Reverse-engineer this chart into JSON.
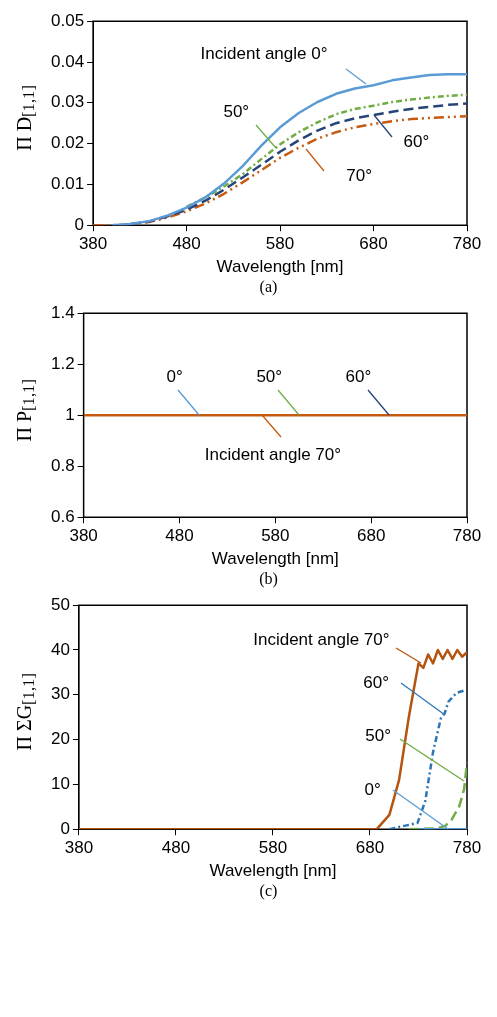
{
  "chart_data": [
    {
      "type": "line",
      "xlabel": "Wavelength [nm]",
      "ylabel": "Π D$_{[1,1]}$",
      "x": [
        380,
        400,
        420,
        440,
        460,
        480,
        500,
        520,
        540,
        560,
        580,
        600,
        620,
        640,
        660,
        680,
        700,
        720,
        740,
        760,
        780
      ],
      "xlim": [
        380,
        780
      ],
      "xticks": [
        380,
        480,
        580,
        680,
        780
      ],
      "ylim": [
        0,
        0.05
      ],
      "yticks": [
        0,
        0.01,
        0.02,
        0.03,
        0.04,
        0.05
      ],
      "marker": "none",
      "legend": false,
      "grid": false,
      "series": [
        {
          "color": "#5b9bd5",
          "line_style": "solid",
          "values": [
            null,
            0,
            0.0003,
            0.001,
            0.0024,
            0.0043,
            0.0068,
            0.0102,
            0.0145,
            0.0195,
            0.024,
            0.0275,
            0.0302,
            0.0322,
            0.0335,
            0.0343,
            0.0355,
            0.0362,
            0.0368,
            0.037,
            0.037
          ]
        },
        {
          "color": "#70ad47",
          "line_style": "dashdot",
          "values": [
            null,
            null,
            null,
            null,
            null,
            0.0045,
            0.0068,
            0.0095,
            0.0125,
            0.0162,
            0.0198,
            0.0228,
            0.0252,
            0.0272,
            0.0285,
            0.0293,
            0.0302,
            0.0308,
            0.0313,
            0.0317,
            0.032
          ]
        },
        {
          "color": "#264478",
          "line_style": "dashed",
          "values": [
            null,
            null,
            0.0003,
            0.0009,
            0.0022,
            0.0038,
            0.006,
            0.0087,
            0.0117,
            0.0148,
            0.018,
            0.0208,
            0.0232,
            0.025,
            0.0262,
            0.027,
            0.0278,
            0.0285,
            0.029,
            0.0295,
            0.0298
          ]
        },
        {
          "color": "#c55a11",
          "line_style": "dashdotdot",
          "values": [
            0,
            0,
            0.0002,
            0.0008,
            0.0019,
            0.0034,
            0.0053,
            0.0077,
            0.0105,
            0.0135,
            0.0165,
            0.019,
            0.0212,
            0.0228,
            0.024,
            0.0248,
            0.0255,
            0.026,
            0.0263,
            0.0265,
            0.0267
          ]
        }
      ],
      "annotations": [
        {
          "text": "Incident angle 0°",
          "x": 672,
          "y": 0.0346
        },
        {
          "text": "50°",
          "x": 576,
          "y": 0.019
        },
        {
          "text": "60°",
          "x": 681,
          "y": 0.027
        },
        {
          "text": "70°",
          "x": 608,
          "y": 0.0187
        },
        "(a)"
      ]
    },
    {
      "type": "line",
      "xlabel": "Wavelength [nm]",
      "ylabel": "Π P$_{[1,1]}$",
      "x": [
        380,
        780
      ],
      "xlim": [
        380,
        780
      ],
      "xticks": [
        380,
        480,
        580,
        680,
        780
      ],
      "ylim": [
        0.6,
        1.4
      ],
      "yticks": [
        0.6,
        0.8,
        1,
        1.2,
        1.4
      ],
      "marker": "none",
      "legend": false,
      "grid": false,
      "series": [
        {
          "color": "#c55a11",
          "line_style": "solid",
          "values": [
            1,
            1
          ]
        }
      ],
      "annotations": [
        {
          "text": "Incident angle 70°",
          "x": 566,
          "y": 1
        },
        {
          "text": "0°",
          "x": 500,
          "y": 1
        },
        {
          "text": "50°",
          "x": 605,
          "y": 1
        },
        {
          "text": "60°",
          "x": 699,
          "y": 1
        },
        "(b)"
      ]
    },
    {
      "type": "line",
      "xlabel": "Wavelength [nm]",
      "ylabel": "Π ΣG$_{[1,1]}$",
      "xlim": [
        380,
        780
      ],
      "xticks": [
        380,
        480,
        580,
        680,
        780
      ],
      "ylim": [
        0,
        50
      ],
      "yticks": [
        0,
        10,
        20,
        30,
        40,
        50
      ],
      "marker": "none",
      "legend": false,
      "grid": false,
      "series": [
        {
          "color": "#5b9bd5",
          "line_style": "solid",
          "x": [
            730,
            780
          ],
          "values": [
            0,
            0
          ]
        },
        {
          "color": "#70ad47",
          "line_style": "dashed",
          "x": [
            720,
            750,
            758,
            764,
            772,
            777,
            780
          ],
          "values": [
            0,
            0.2,
            0.8,
            2.1,
            5.1,
            8.9,
            14.9
          ]
        },
        {
          "color": "#2e75b6",
          "line_style": "dashdot",
          "x": [
            700,
            729,
            737,
            745,
            753,
            757,
            761,
            769,
            779
          ],
          "values": [
            0,
            1.4,
            6.3,
            17.2,
            24.7,
            25.9,
            28.5,
            30.4,
            31.1
          ]
        },
        {
          "color": "#b4540f",
          "line_style": "solid",
          "x": [
            380,
            687,
            700,
            710,
            720,
            725,
            730,
            735,
            740,
            745,
            750,
            755,
            760,
            765,
            770,
            775,
            780
          ],
          "values": [
            0,
            0,
            3.2,
            11,
            25,
            31,
            37,
            36,
            39,
            37,
            40,
            38,
            40,
            38,
            40,
            38.5,
            39.5
          ]
        }
      ],
      "annotations": [
        {
          "text": "0°",
          "x": 760,
          "y": 0
        },
        {
          "text": "50°",
          "x": 777,
          "y": 10.8
        },
        {
          "text": "60°",
          "x": 757.5,
          "y": 25.5
        },
        {
          "text": "Incident angle 70°",
          "x": 733,
          "y": 37.2
        },
        "(c)"
      ]
    }
  ]
}
